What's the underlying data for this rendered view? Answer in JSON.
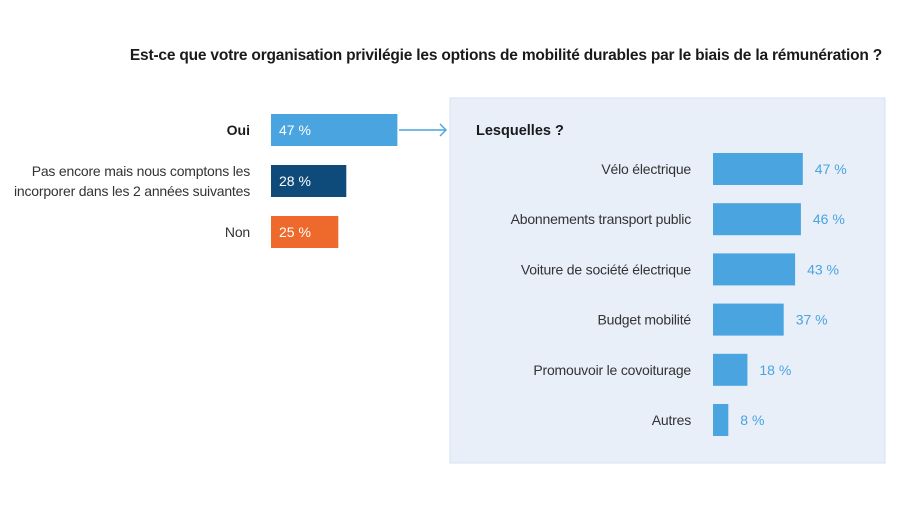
{
  "title": "Est-ce que votre organisation privilégie les options de mobilité durables par le biais de la rémunération ?",
  "colors": {
    "light_blue": "#4aa4df",
    "dark_blue": "#0e4a7a",
    "orange": "#ee6a2c",
    "panel_bg": "#e8eff9",
    "panel_border": "#d3e0f2"
  },
  "chart_data": [
    {
      "type": "bar",
      "orientation": "horizontal",
      "title": "Est-ce que votre organisation privilégie les options de mobilité durables par le biais de la rémunération ?",
      "categories": [
        [
          "Oui"
        ],
        [
          "Pas encore mais nous comptons les",
          "incorporer dans les 2 années suivantes"
        ],
        [
          "Non"
        ]
      ],
      "values": [
        47,
        28,
        25
      ],
      "value_labels": [
        "47 %",
        "28 %",
        "25 %"
      ],
      "bar_colors": [
        "#4aa4df",
        "#0e4a7a",
        "#ee6a2c"
      ],
      "bold_category_index": 0,
      "xlim": [
        0,
        100
      ]
    },
    {
      "type": "bar",
      "orientation": "horizontal",
      "title": "Lesquelles ?",
      "categories": [
        "Vélo électrique",
        "Abonnements transport public",
        "Voiture de société électrique",
        "Budget mobilité",
        "Promouvoir le covoiturage",
        "Autres"
      ],
      "values": [
        47,
        46,
        43,
        37,
        18,
        8
      ],
      "value_labels": [
        "47 %",
        "46 %",
        "43 %",
        "37 %",
        "18 %",
        "8 %"
      ],
      "bar_color": "#4aa4df",
      "xlim": [
        0,
        100
      ]
    }
  ]
}
